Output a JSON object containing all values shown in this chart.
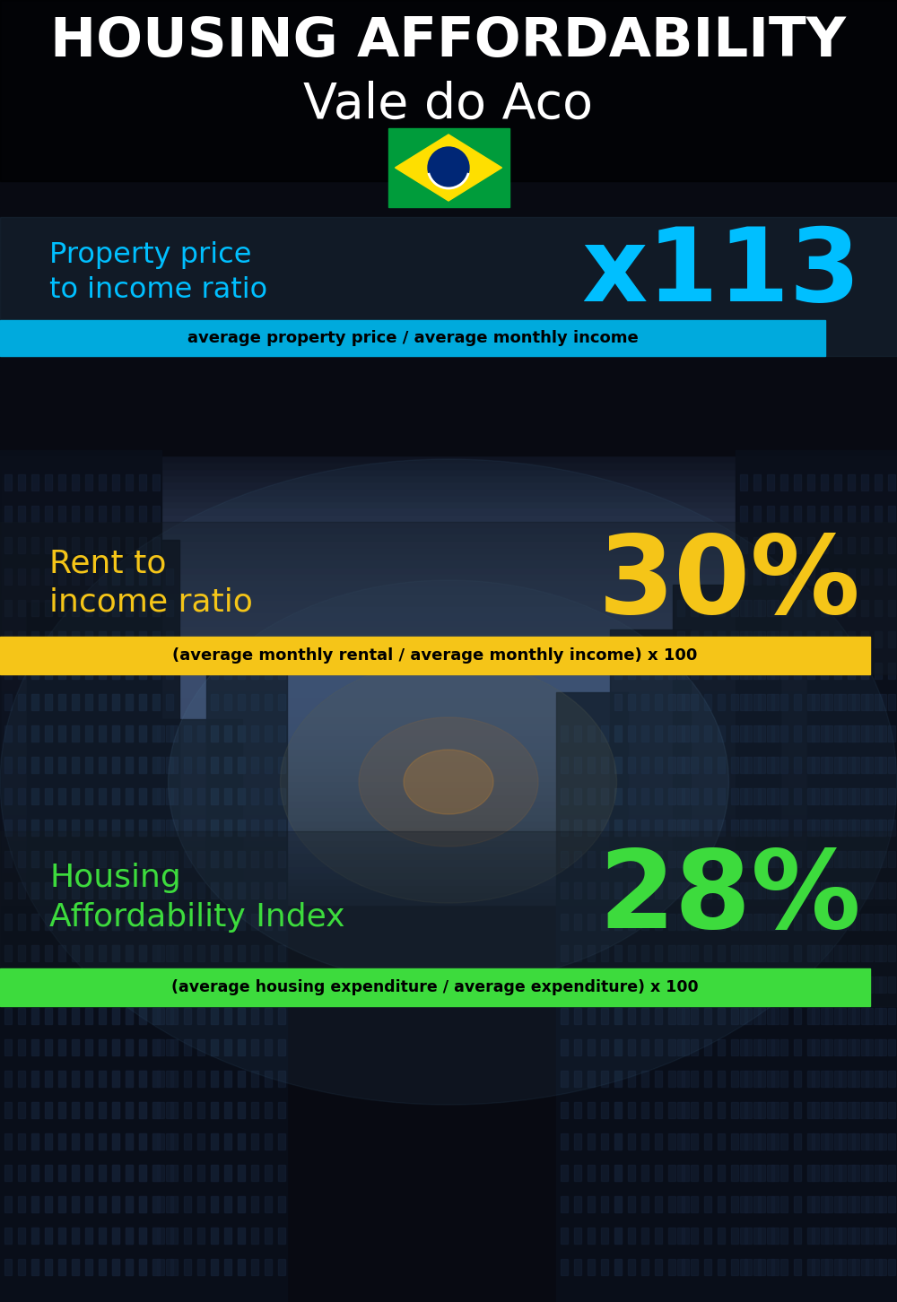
{
  "title_line1": "HOUSING AFFORDABILITY",
  "title_line2": "Vale do Aco",
  "bg_color": "#060d18",
  "title_color": "#ffffff",
  "section1_label": "Property price\nto income ratio",
  "section1_value": "x113",
  "section1_label_color": "#00bfff",
  "section1_value_color": "#00bfff",
  "section1_formula": "average property price / average monthly income",
  "section1_formula_bg": "#00aadd",
  "section2_label": "Rent to\nincome ratio",
  "section2_value": "30%",
  "section2_label_color": "#f5c518",
  "section2_value_color": "#f5c518",
  "section2_formula": "(average monthly rental / average monthly income) x 100",
  "section2_formula_bg": "#f5c518",
  "section3_label": "Housing\nAffordability Index",
  "section3_value": "28%",
  "section3_label_color": "#3ddb3d",
  "section3_value_color": "#3ddb3d",
  "section3_formula": "(average housing expenditure / average expenditure) x 100",
  "section3_formula_bg": "#3ddb3d",
  "panel1_color": "#1a2a3a",
  "panel1_alpha": 0.55,
  "panel2_color": "#111820",
  "panel2_alpha": 0.45
}
